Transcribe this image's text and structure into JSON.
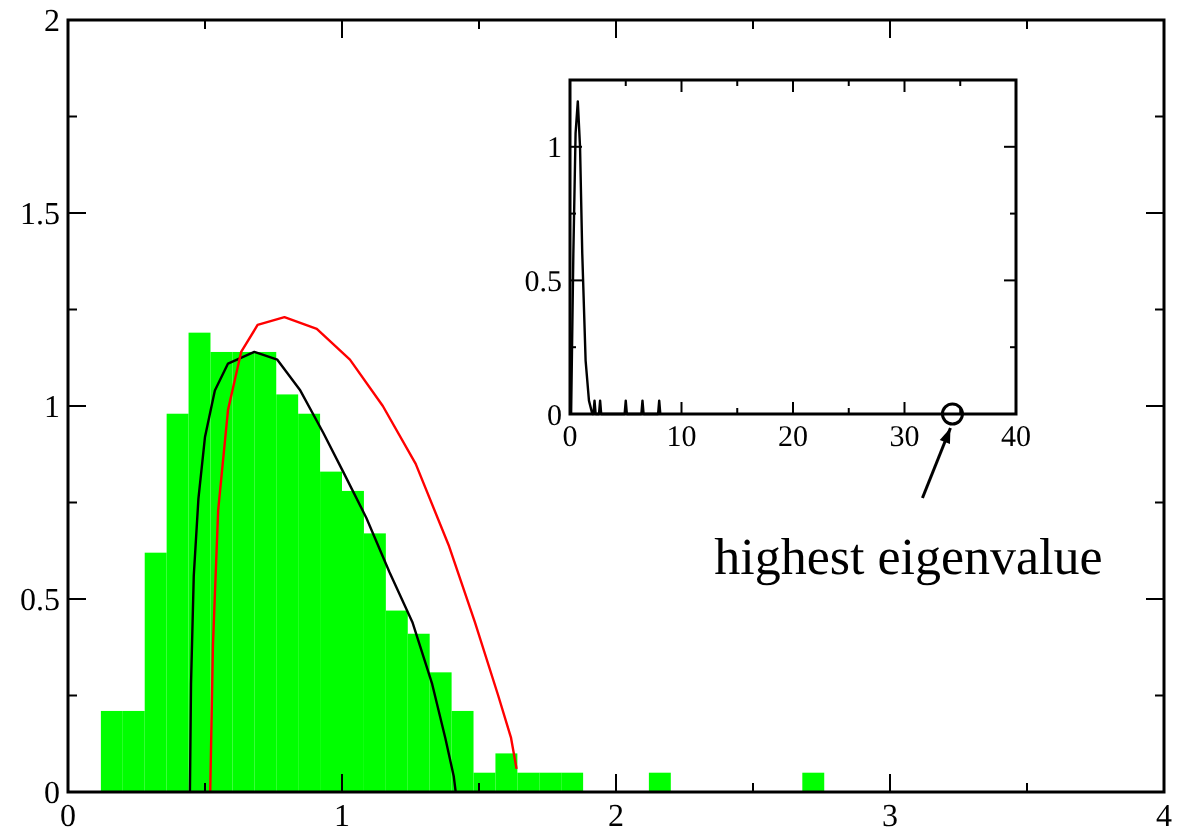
{
  "chart_data": [
    {
      "type": "histogram",
      "bins": [
        0.12,
        0.2,
        0.28,
        0.36,
        0.44,
        0.52,
        0.6,
        0.68,
        0.76,
        0.84,
        0.92,
        1.0,
        1.08,
        1.16,
        1.24,
        1.32,
        1.4,
        1.48,
        1.56,
        1.64,
        1.72,
        1.8,
        1.88,
        1.96,
        2.04,
        2.12,
        2.2,
        2.28,
        2.36,
        2.44,
        2.52,
        2.6,
        2.68,
        2.76
      ],
      "values": [
        0.21,
        0.21,
        0.62,
        0.98,
        1.19,
        1.14,
        1.14,
        1.14,
        1.03,
        0.98,
        0.83,
        0.78,
        0.67,
        0.47,
        0.41,
        0.31,
        0.21,
        0.05,
        0.1,
        0.05,
        0.05,
        0.05,
        0,
        0,
        0,
        0.05,
        0,
        0,
        0,
        0,
        0,
        0,
        0.05
      ],
      "color": "#00ff00",
      "series": [
        {
          "type": "line",
          "color": "#000000",
          "x": [
            0.445,
            0.449,
            0.459,
            0.476,
            0.5,
            0.536,
            0.584,
            0.68,
            0.764,
            0.848,
            0.932,
            1.004,
            1.089,
            1.173,
            1.257,
            1.329,
            1.377,
            1.408,
            1.415
          ],
          "values": [
            0,
            0.28,
            0.56,
            0.76,
            0.92,
            1.04,
            1.11,
            1.14,
            1.12,
            1.04,
            0.93,
            0.83,
            0.71,
            0.57,
            0.44,
            0.28,
            0.14,
            0.04,
            0
          ]
        },
        {
          "type": "line",
          "color": "#ff0000",
          "x": [
            0.519,
            0.529,
            0.548,
            0.584,
            0.632,
            0.692,
            0.79,
            0.908,
            1.029,
            1.149,
            1.269,
            1.389,
            1.485,
            1.57,
            1.617,
            1.637
          ],
          "values": [
            0,
            0.38,
            0.73,
            0.99,
            1.14,
            1.21,
            1.23,
            1.2,
            1.12,
            1.0,
            0.85,
            0.64,
            0.44,
            0.25,
            0.14,
            0.06
          ]
        }
      ],
      "xlim": [
        0,
        4
      ],
      "ylim": [
        0,
        2
      ],
      "xticks": [
        0,
        {
          "value": 0.5,
          "label": null
        },
        1,
        {
          "value": 1.5,
          "label": null
        },
        2,
        {
          "value": 2.5,
          "label": null
        },
        3,
        {
          "value": 3.5,
          "label": null
        },
        4
      ],
      "yticks": [
        0,
        {
          "value": 0.25,
          "label": null
        },
        0.5,
        {
          "value": 0.75,
          "label": null
        },
        1,
        {
          "value": 1.25,
          "label": null
        },
        1.5,
        {
          "value": 1.75,
          "label": null
        },
        2
      ]
    },
    {
      "type": "line",
      "series": [
        {
          "color": "#000000",
          "x": [
            0.1,
            0.3,
            0.5,
            0.7,
            0.9,
            1.1,
            1.4,
            1.7,
            2.0,
            2.1,
            2.2,
            2.3,
            2.6,
            2.7,
            2.8,
            4.9,
            5.0,
            5.1,
            6.4,
            6.5,
            6.6,
            7.9,
            8.0,
            8.1
          ],
          "values": [
            0,
            0.6,
            1.05,
            1.17,
            1.0,
            0.6,
            0.2,
            0.05,
            0,
            0,
            0.05,
            0,
            0,
            0.05,
            0,
            0,
            0.05,
            0,
            0,
            0.05,
            0,
            0,
            0.05,
            0
          ]
        },
        {
          "type": "scatter",
          "color": "#000000",
          "marker": "circle",
          "x": [
            34.3
          ],
          "values": [
            0
          ]
        }
      ],
      "xlim": [
        0,
        40
      ],
      "ylim": [
        0,
        1.25
      ],
      "xticks": [
        0,
        {
          "value": 5,
          "label": null
        },
        10,
        {
          "value": 15,
          "label": null
        },
        20,
        {
          "value": 25,
          "label": null
        },
        30,
        {
          "value": 35,
          "label": null
        },
        40
      ],
      "yticks": [
        0,
        {
          "value": 0.25,
          "label": null
        },
        0.5,
        {
          "value": 0.75,
          "label": null
        },
        1
      ],
      "annotations": [
        {
          "text": "highest eigenvalue",
          "x": 34.3,
          "y": 0
        }
      ]
    }
  ]
}
